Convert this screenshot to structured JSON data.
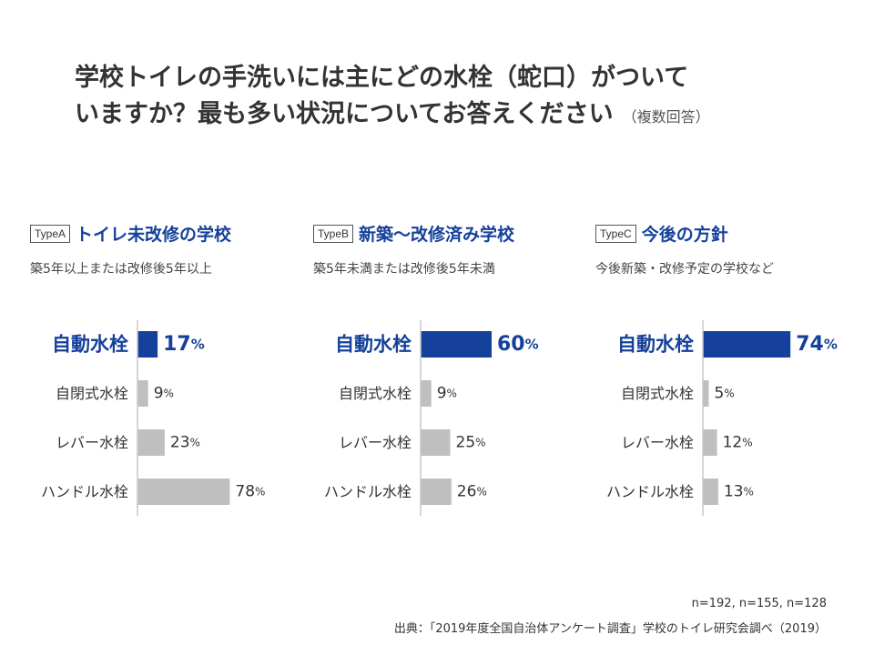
{
  "title": {
    "line1": "学校トイレの手洗いには主にどの水栓（蛇口）がついて",
    "line2": "いますか？最も多い状況についてお答えください",
    "note": "（複数回答）"
  },
  "colors": {
    "highlight": "#15409b",
    "bar_gray": "#bfbfbf",
    "axis": "#c8c8c8",
    "text": "#333333"
  },
  "panels": [
    {
      "badge": "TypeA",
      "name": "トイレ未改修の学校",
      "desc": "築5年以上または改修後5年以上"
    },
    {
      "badge": "TypeB",
      "name": "新築〜改修済み学校",
      "desc": "築5年未満または改修後5年未満"
    },
    {
      "badge": "TypeC",
      "name": "今後の方針",
      "desc": "今後新築・改修予定の学校など"
    }
  ],
  "chart_data": [
    {
      "type": "bar",
      "orientation": "horizontal",
      "title": "トイレ未改修の学校",
      "categories": [
        "自動水栓",
        "自閉式水栓",
        "レバー水栓",
        "ハンドル水栓"
      ],
      "values": [
        17,
        9,
        23,
        78
      ],
      "unit": "%",
      "highlight_index": 0,
      "xlim": [
        0,
        100
      ]
    },
    {
      "type": "bar",
      "orientation": "horizontal",
      "title": "新築〜改修済み学校",
      "categories": [
        "自動水栓",
        "自閉式水栓",
        "レバー水栓",
        "ハンドル水栓"
      ],
      "values": [
        60,
        9,
        25,
        26
      ],
      "unit": "%",
      "highlight_index": 0,
      "xlim": [
        0,
        100
      ]
    },
    {
      "type": "bar",
      "orientation": "horizontal",
      "title": "今後の方針",
      "categories": [
        "自動水栓",
        "自閉式水栓",
        "レバー水栓",
        "ハンドル水栓"
      ],
      "values": [
        74,
        5,
        12,
        13
      ],
      "unit": "%",
      "highlight_index": 0,
      "xlim": [
        0,
        100
      ]
    }
  ],
  "footer": {
    "sample": "n=192, n=155, n=128",
    "source": "出典：「2019年度全国自治体アンケート調査」学校のトイレ研究会調べ（2019）"
  }
}
